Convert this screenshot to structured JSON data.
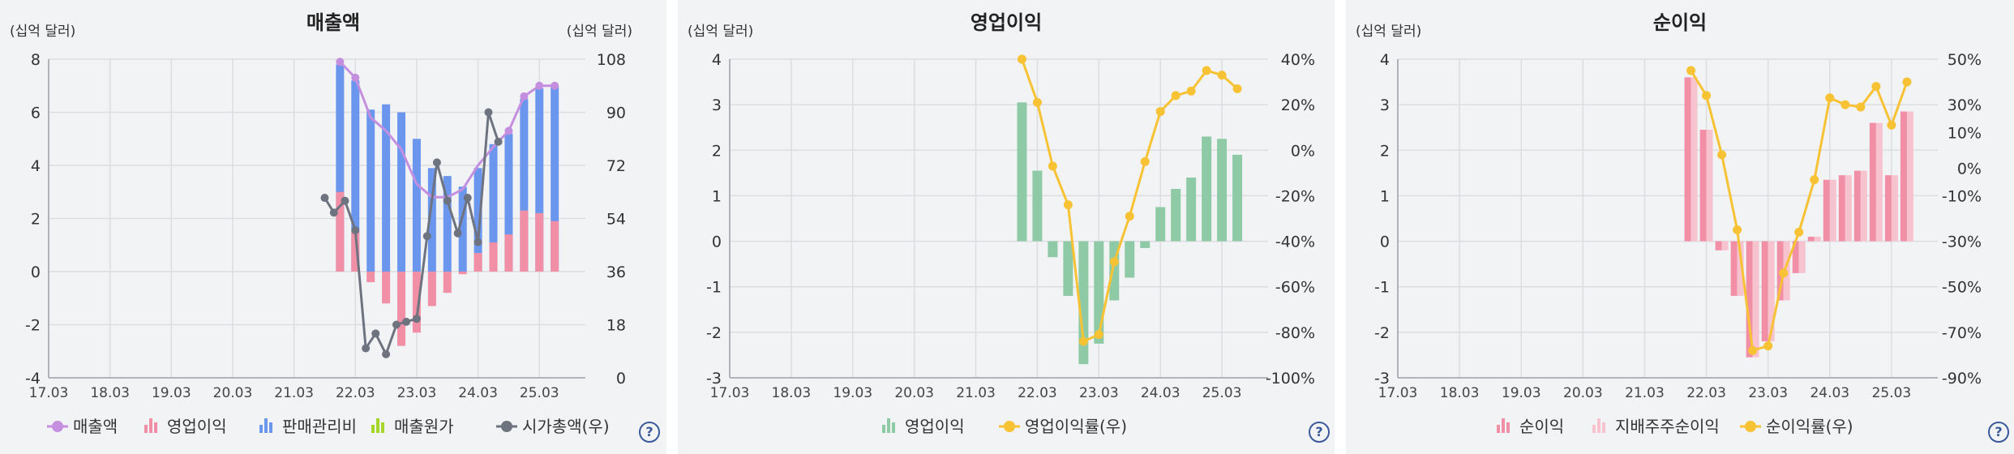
{
  "chart_data": [
    {
      "type": "bar",
      "title": "매출액",
      "left_unit": "(십억 달러)",
      "right_unit": "(십억 달러)",
      "x_ticks": [
        "17.03",
        "18.03",
        "19.03",
        "20.03",
        "21.03",
        "22.03",
        "23.03",
        "24.03",
        "25.03"
      ],
      "ylim_left": [
        -4,
        8
      ],
      "left_ticks": [
        "-4",
        "-2",
        "0",
        "2",
        "4",
        "6",
        "8"
      ],
      "ylim_right": [
        0,
        108
      ],
      "right_ticks": [
        "0",
        "18",
        "36",
        "54",
        "72",
        "90",
        "108"
      ],
      "quarters_x": [
        21.75,
        22.0,
        22.25,
        22.5,
        22.75,
        23.0,
        23.25,
        23.5,
        23.75,
        24.0,
        24.25,
        24.5,
        24.75,
        25.0,
        25.25
      ],
      "series": [
        {
          "name": "매출액",
          "kind": "line",
          "axis": "left",
          "color": "#c58fe0",
          "values": [
            7.9,
            7.3,
            5.8,
            5.3,
            4.6,
            3.3,
            2.8,
            2.8,
            3.1,
            4.0,
            4.7,
            5.3,
            6.6,
            7.0,
            7.0
          ]
        },
        {
          "name": "영업이익",
          "kind": "bar",
          "axis": "left",
          "color": "#f08fa6",
          "values": [
            3.0,
            1.5,
            -0.4,
            -1.2,
            -2.8,
            -2.3,
            -1.3,
            -0.8,
            -0.1,
            0.7,
            1.1,
            1.4,
            2.3,
            2.2,
            1.9
          ]
        },
        {
          "name": "판매관리비",
          "kind": "bar",
          "axis": "left",
          "color": "#6b96ee",
          "values": [
            7.8,
            7.2,
            6.1,
            6.3,
            6.0,
            5.0,
            3.9,
            3.6,
            3.2,
            3.9,
            4.8,
            5.2,
            6.5,
            6.9,
            7.0
          ]
        },
        {
          "name": "매출원가",
          "kind": "bar",
          "axis": "left",
          "color": "#a6d62a",
          "values": []
        },
        {
          "name": "시가총액(우)",
          "kind": "line",
          "axis": "right",
          "color": "#6e7380",
          "values": [
            null,
            null,
            null,
            null,
            null,
            null,
            null,
            null,
            null,
            null,
            null,
            null,
            null,
            null,
            null
          ]
        }
      ],
      "market_cap": {
        "x": [
          21.5,
          21.65,
          21.83,
          22.0,
          22.17,
          22.33,
          22.5,
          22.67,
          22.83,
          23.0,
          23.17,
          23.33,
          23.5,
          23.67,
          23.83,
          24.0,
          24.17,
          24.33,
          24.5,
          24.67,
          24.83,
          25.0,
          25.17,
          25.33
        ],
        "values": [
          61,
          56,
          60,
          50,
          10,
          15,
          8,
          18,
          19,
          20,
          48,
          73,
          60,
          49,
          61,
          46,
          90,
          80,
          null,
          null,
          null,
          null,
          null,
          null
        ]
      },
      "legend": [
        {
          "label": "매출액",
          "icon": "line-dot",
          "color": "#c58fe0"
        },
        {
          "label": "영업이익",
          "icon": "bars",
          "color": "#f08fa6"
        },
        {
          "label": "판매관리비",
          "icon": "bars",
          "color": "#6b96ee"
        },
        {
          "label": "매출원가",
          "icon": "bars",
          "color": "#a6d62a"
        },
        {
          "label": "시가총액(우)",
          "icon": "line-dot",
          "color": "#6e7380"
        }
      ]
    },
    {
      "type": "bar",
      "title": "영업이익",
      "left_unit": "(십억 달러)",
      "x_ticks": [
        "17.03",
        "18.03",
        "19.03",
        "20.03",
        "21.03",
        "22.03",
        "23.03",
        "24.03",
        "25.03"
      ],
      "ylim_left": [
        -3,
        4
      ],
      "left_ticks": [
        "-3",
        "-2",
        "-1",
        "0",
        "1",
        "2",
        "3",
        "4"
      ],
      "ylim_right": [
        -100,
        40
      ],
      "right_ticks": [
        "-100%",
        "-80%",
        "-60%",
        "-40%",
        "-20%",
        "0%",
        "20%",
        "40%"
      ],
      "quarters_x": [
        21.75,
        22.0,
        22.25,
        22.5,
        22.75,
        23.0,
        23.25,
        23.5,
        23.75,
        24.0,
        24.25,
        24.5,
        24.75,
        25.0,
        25.25
      ],
      "series": [
        {
          "name": "영업이익",
          "kind": "bar",
          "axis": "left",
          "color": "#8fcaa6",
          "values": [
            3.05,
            1.55,
            -0.35,
            -1.2,
            -2.7,
            -2.25,
            -1.3,
            -0.8,
            -0.15,
            0.75,
            1.15,
            1.4,
            2.3,
            2.25,
            1.9
          ]
        },
        {
          "name": "영업이익률(우)",
          "kind": "line",
          "axis": "right",
          "color": "#f7c234",
          "values": [
            40,
            21,
            -7,
            -24,
            -84,
            -81,
            -49,
            -29,
            -5,
            17,
            24,
            26,
            35,
            33,
            27
          ]
        }
      ],
      "legend": [
        {
          "label": "영업이익",
          "icon": "bars",
          "color": "#8fcaa6"
        },
        {
          "label": "영업이익률(우)",
          "icon": "line-dot",
          "color": "#f7c234"
        }
      ]
    },
    {
      "type": "bar",
      "title": "순이익",
      "left_unit": "(십억 달러)",
      "x_ticks": [
        "17.03",
        "18.03",
        "19.03",
        "20.03",
        "21.03",
        "22.03",
        "23.03",
        "24.03",
        "25.03"
      ],
      "ylim_left": [
        -3,
        4
      ],
      "left_ticks": [
        "-3",
        "-2",
        "-1",
        "0",
        "1",
        "2",
        "3",
        "4"
      ],
      "ylim_right": [
        -90,
        50
      ],
      "right_ticks": [
        "-90%",
        "-70%",
        "-50%",
        "-30%",
        "-10%",
        "0%",
        "10%",
        "30%",
        "50%"
      ],
      "quarters_x": [
        21.75,
        22.0,
        22.25,
        22.5,
        22.75,
        23.0,
        23.25,
        23.5,
        23.75,
        24.0,
        24.25,
        24.5,
        24.75,
        25.0,
        25.25
      ],
      "series": [
        {
          "name": "순이익",
          "kind": "bar",
          "axis": "left",
          "color": "#f08fa6",
          "values": [
            3.6,
            2.45,
            -0.2,
            -1.2,
            -2.55,
            -2.2,
            -1.3,
            -0.7,
            0.1,
            1.35,
            1.45,
            1.55,
            2.6,
            1.45,
            2.85
          ]
        },
        {
          "name": "지배주주순이익",
          "kind": "bar",
          "axis": "left",
          "color": "#f7c3cf",
          "values": [
            3.6,
            2.45,
            -0.2,
            -1.2,
            -2.55,
            -2.2,
            -1.3,
            -0.7,
            0.1,
            1.35,
            1.45,
            1.55,
            2.6,
            1.45,
            2.85
          ]
        },
        {
          "name": "순이익률(우)",
          "kind": "line",
          "axis": "right",
          "color": "#f7c234",
          "values": [
            45,
            34,
            8,
            -25,
            -78,
            -76,
            -44,
            -26,
            -3,
            33,
            30,
            29,
            38,
            21,
            40
          ]
        }
      ],
      "legend": [
        {
          "label": "순이익",
          "icon": "bars",
          "color": "#f08fa6"
        },
        {
          "label": "지배주주순이익",
          "icon": "bars",
          "color": "#f7c3cf"
        },
        {
          "label": "순이익률(우)",
          "icon": "line-dot",
          "color": "#f7c234"
        }
      ]
    }
  ]
}
